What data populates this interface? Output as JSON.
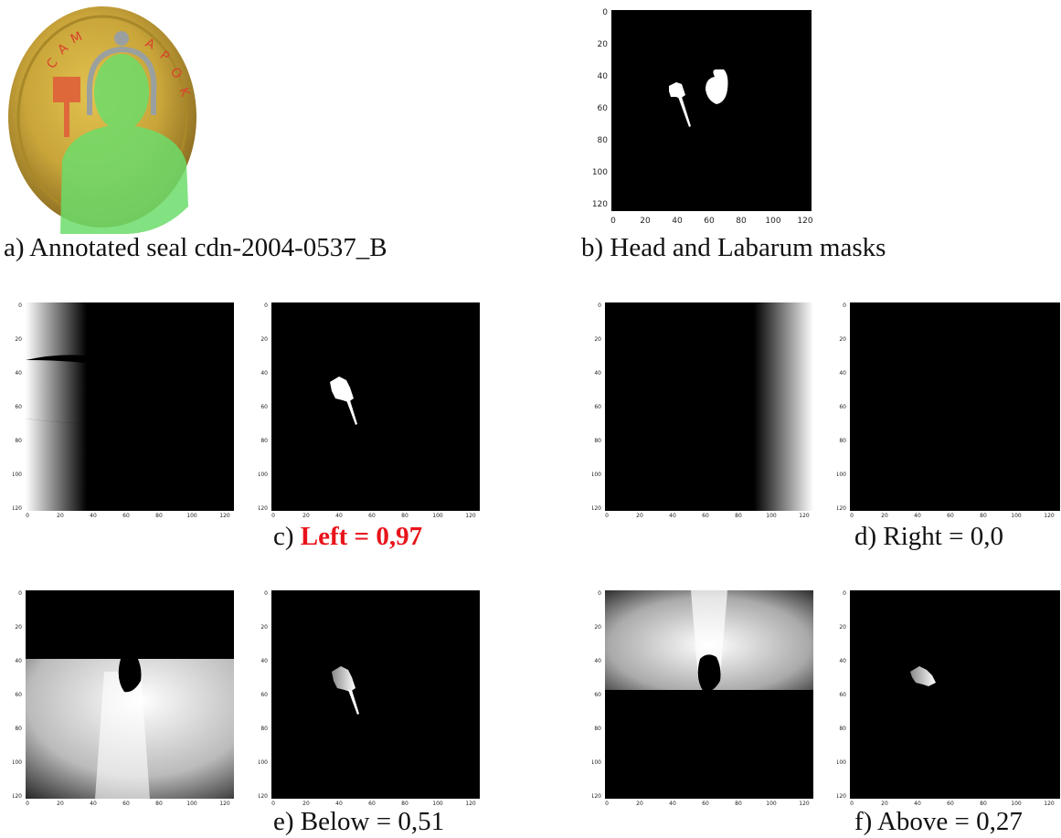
{
  "captions": {
    "a": "a) Annotated seal cdn-2004-0537_B",
    "b": "b) Head and Labarum masks",
    "c_prefix": "c) ",
    "c_value": "Left = 0,97",
    "d": "d) Right = 0,0",
    "e": "e) Below = 0,51",
    "f": "f) Above = 0,27"
  },
  "seal_lettering": "CΑΜΔ ΑΝΡΟΚ",
  "axis": {
    "y_ticks": [
      "0",
      "20",
      "40",
      "60",
      "80",
      "100",
      "120"
    ],
    "x_ticks": [
      "0",
      "20",
      "40",
      "60",
      "80",
      "100",
      "120"
    ]
  },
  "colors": {
    "highlight": "#e8141b",
    "mask_annotation": "#6ddc6a",
    "annotation_orange": "#e0603a",
    "annotation_gray": "#9aa0a0",
    "seal_gold": "#c9a53a"
  }
}
